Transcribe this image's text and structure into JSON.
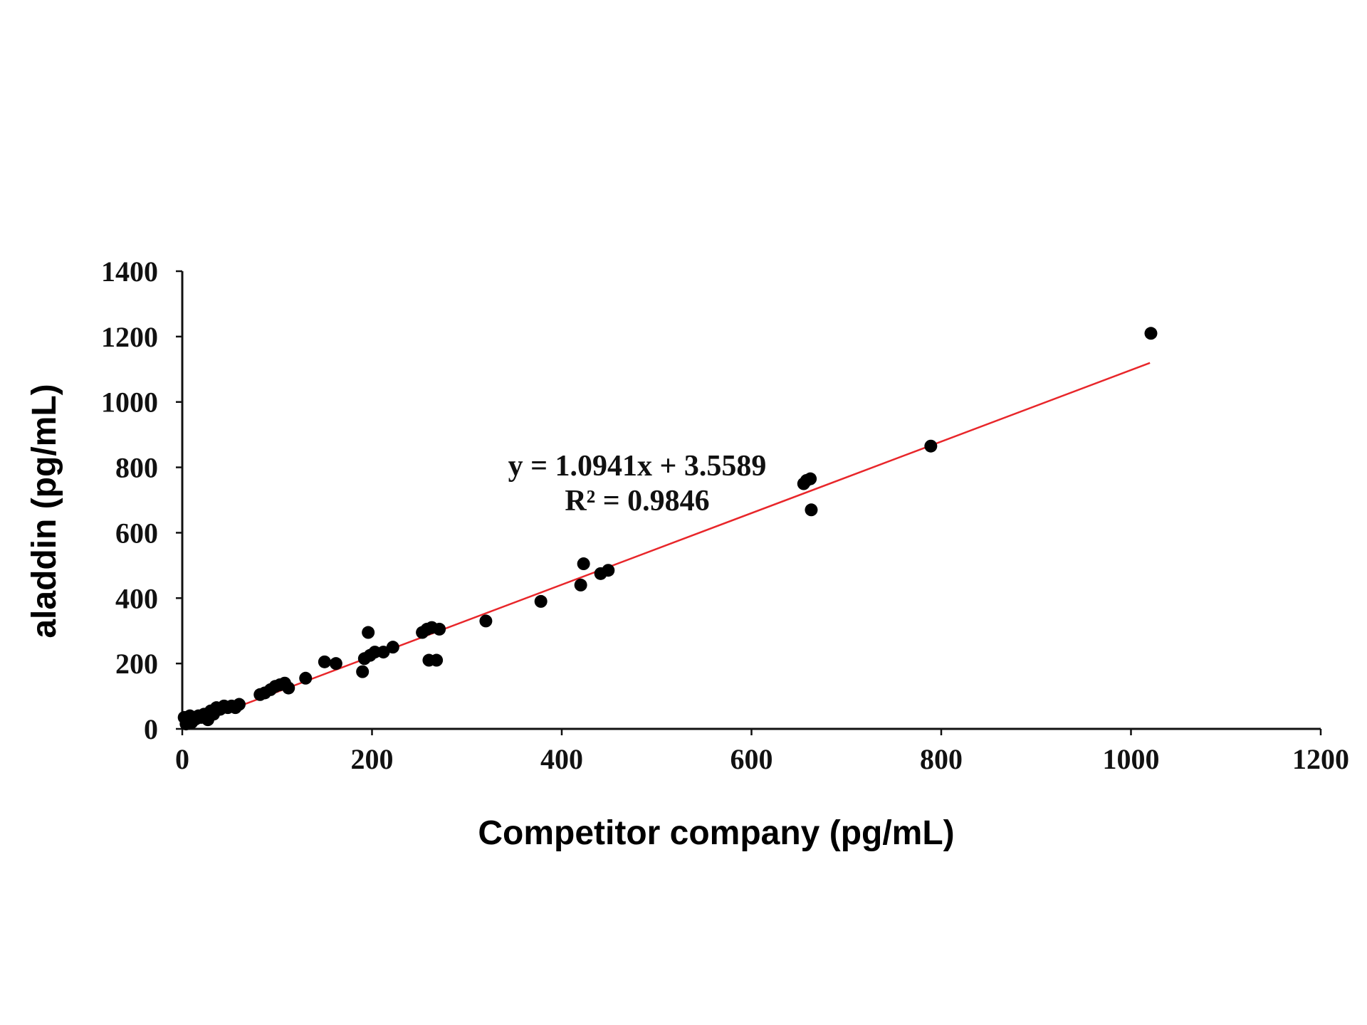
{
  "chart_data": {
    "type": "scatter",
    "xlabel": "Competitor company (pg/mL)",
    "ylabel": "aladdin (pg/mL)",
    "xlim": [
      0,
      1200
    ],
    "ylim": [
      0,
      1400
    ],
    "xticks": [
      "0",
      "200",
      "400",
      "600",
      "800",
      "1000",
      "1200"
    ],
    "yticks": [
      "0",
      "200",
      "400",
      "600",
      "800",
      "1000",
      "1200",
      "1400"
    ],
    "grid": false,
    "legend": "none",
    "colors": {
      "points": "#000000",
      "trendline": "#e8262a",
      "axes": "#111111"
    },
    "trendline": {
      "slope": 1.0941,
      "intercept": 3.5589,
      "x_range": [
        0,
        1020
      ],
      "equation_label": "y = 1.0941x + 3.5589",
      "r2_label": "R² = 0.9846"
    },
    "points": [
      {
        "x": 2,
        "y": 35
      },
      {
        "x": 4,
        "y": 15
      },
      {
        "x": 6,
        "y": 25
      },
      {
        "x": 8,
        "y": 40
      },
      {
        "x": 10,
        "y": 20
      },
      {
        "x": 14,
        "y": 30
      },
      {
        "x": 17,
        "y": 40
      },
      {
        "x": 20,
        "y": 35
      },
      {
        "x": 23,
        "y": 45
      },
      {
        "x": 27,
        "y": 28
      },
      {
        "x": 30,
        "y": 55
      },
      {
        "x": 33,
        "y": 45
      },
      {
        "x": 36,
        "y": 65
      },
      {
        "x": 40,
        "y": 60
      },
      {
        "x": 44,
        "y": 70
      },
      {
        "x": 48,
        "y": 65
      },
      {
        "x": 52,
        "y": 70
      },
      {
        "x": 56,
        "y": 65
      },
      {
        "x": 60,
        "y": 75
      },
      {
        "x": 82,
        "y": 105
      },
      {
        "x": 87,
        "y": 110
      },
      {
        "x": 93,
        "y": 120
      },
      {
        "x": 98,
        "y": 130
      },
      {
        "x": 103,
        "y": 135
      },
      {
        "x": 108,
        "y": 140
      },
      {
        "x": 112,
        "y": 125
      },
      {
        "x": 130,
        "y": 155
      },
      {
        "x": 150,
        "y": 205
      },
      {
        "x": 162,
        "y": 200
      },
      {
        "x": 190,
        "y": 175
      },
      {
        "x": 192,
        "y": 215
      },
      {
        "x": 196,
        "y": 295
      },
      {
        "x": 198,
        "y": 225
      },
      {
        "x": 203,
        "y": 235
      },
      {
        "x": 212,
        "y": 235
      },
      {
        "x": 222,
        "y": 250
      },
      {
        "x": 253,
        "y": 295
      },
      {
        "x": 258,
        "y": 305
      },
      {
        "x": 260,
        "y": 210
      },
      {
        "x": 263,
        "y": 310
      },
      {
        "x": 268,
        "y": 210
      },
      {
        "x": 271,
        "y": 305
      },
      {
        "x": 320,
        "y": 330
      },
      {
        "x": 378,
        "y": 390
      },
      {
        "x": 420,
        "y": 440
      },
      {
        "x": 423,
        "y": 505
      },
      {
        "x": 441,
        "y": 475
      },
      {
        "x": 449,
        "y": 485
      },
      {
        "x": 655,
        "y": 750
      },
      {
        "x": 658,
        "y": 760
      },
      {
        "x": 662,
        "y": 765
      },
      {
        "x": 663,
        "y": 670
      },
      {
        "x": 789,
        "y": 865
      },
      {
        "x": 1021,
        "y": 1210
      }
    ]
  }
}
